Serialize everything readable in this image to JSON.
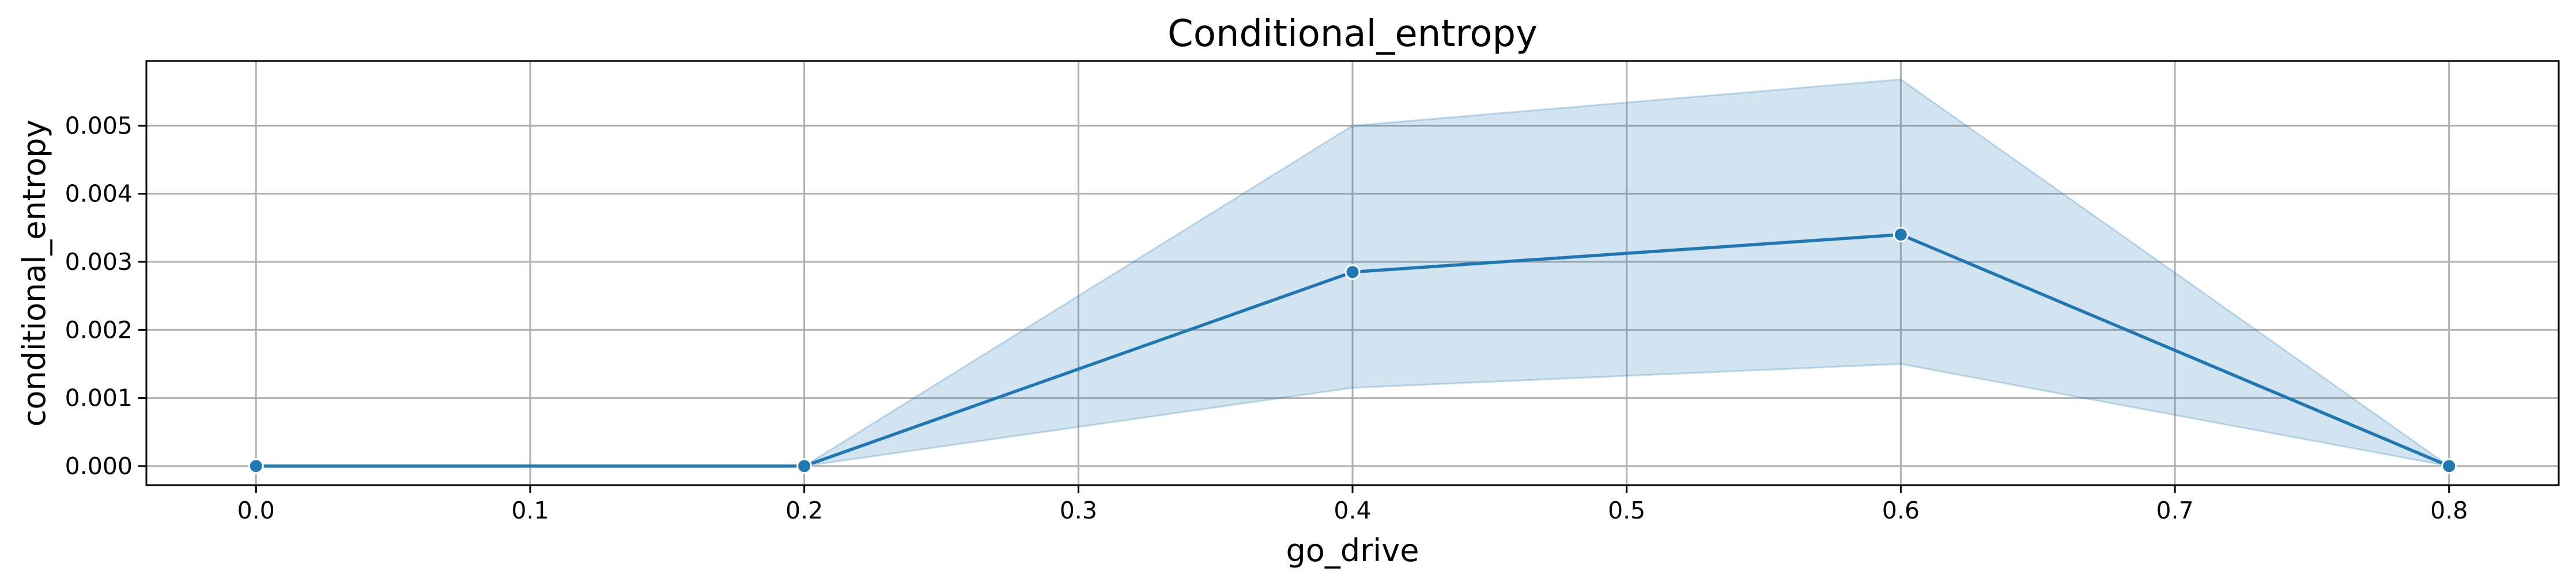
{
  "chart_data": {
    "type": "line",
    "title": "Conditional_entropy",
    "xlabel": "go_drive",
    "ylabel": "conditional_entropy",
    "xlim": [
      -0.04,
      0.84
    ],
    "ylim": [
      -0.00028,
      0.00595
    ],
    "x_ticks": [
      0.0,
      0.1,
      0.2,
      0.3,
      0.4,
      0.5,
      0.6,
      0.7,
      0.8
    ],
    "x_tick_labels": [
      "0.0",
      "0.1",
      "0.2",
      "0.3",
      "0.4",
      "0.5",
      "0.6",
      "0.7",
      "0.8"
    ],
    "y_ticks": [
      0.0,
      0.001,
      0.002,
      0.003,
      0.004,
      0.005
    ],
    "y_tick_labels": [
      "0.000",
      "0.001",
      "0.002",
      "0.003",
      "0.004",
      "0.005"
    ],
    "grid": true,
    "series": [
      {
        "x": [
          0.0,
          0.2,
          0.4,
          0.6,
          0.8
        ],
        "y": [
          0.0,
          0.0,
          0.00285,
          0.0034,
          0.0
        ],
        "ci_lower": [
          0.0,
          0.0,
          0.00115,
          0.0015,
          0.0
        ],
        "ci_upper": [
          0.0,
          0.0,
          0.005,
          0.00568,
          0.0
        ],
        "color": "#1f77b4",
        "band_color": "#1f77b4"
      }
    ]
  }
}
